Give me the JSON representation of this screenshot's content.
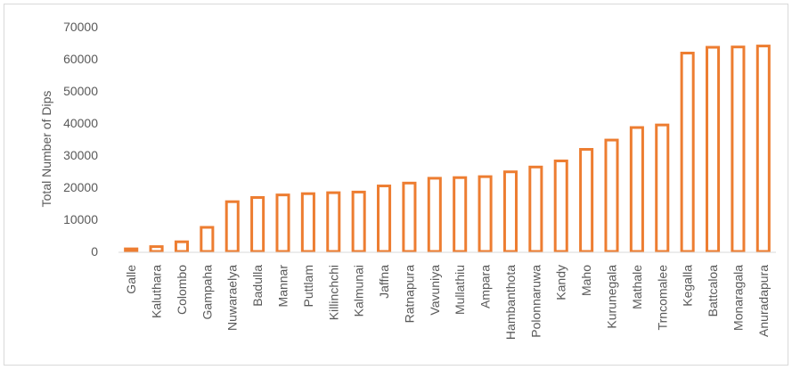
{
  "chart_data": {
    "type": "bar",
    "title": "",
    "xlabel": "",
    "ylabel": "Total Number of Dips",
    "ylim": [
      0,
      70000
    ],
    "yticks": [
      0,
      10000,
      20000,
      30000,
      40000,
      50000,
      60000,
      70000
    ],
    "grid": false,
    "bar_style": "outline",
    "bar_color": "#ed7d31",
    "categories": [
      "Galle",
      "Kaluthara",
      "Colombo",
      "Gampaha",
      "Nuwaraelya",
      "Badulla",
      "Mannar",
      "Puttlam",
      "Killinchchi",
      "Kalmunai",
      "Jaffna",
      "Ratnapura",
      "Vavuniya",
      "Mullathiu",
      "Ampara",
      "Hambanthota",
      "Polonnaruwa",
      "Kandy",
      "Maho",
      "Kurunegala",
      "Mathale",
      "Trncomalee",
      "Kegalla",
      "Battcaloa",
      "Monaragala",
      "Anuradapura"
    ],
    "values": [
      800,
      1500,
      3000,
      7500,
      15500,
      16800,
      17600,
      18000,
      18300,
      18500,
      20400,
      21300,
      22800,
      23000,
      23300,
      24800,
      26300,
      28200,
      31800,
      34700,
      38600,
      39400,
      61800,
      63600,
      63700,
      64000
    ]
  }
}
